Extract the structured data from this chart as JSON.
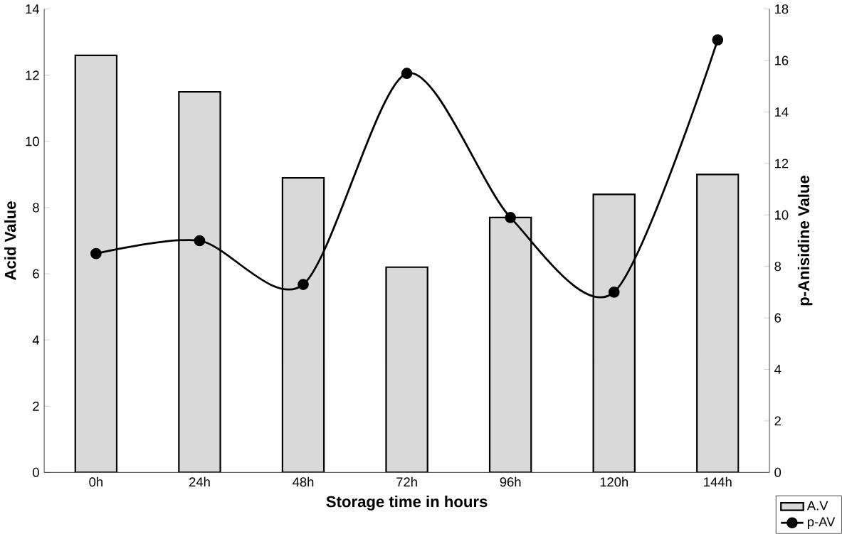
{
  "chart_data": {
    "type": "bar",
    "xlabel": "Storage time in hours",
    "ylabel": "Acid Value",
    "y2label": "p-Anisidine Value",
    "categories": [
      "0h",
      "24h",
      "48h",
      "72h",
      "96h",
      "120h",
      "144h"
    ],
    "series": [
      {
        "name": "A.V",
        "color": "#d9d9d9",
        "values": [
          12.6,
          11.5,
          8.9,
          6.2,
          7.7,
          8.4,
          9.0
        ]
      },
      {
        "name": "p-AV",
        "type": "line",
        "axis": "y2",
        "color": "#000000",
        "marker": "circle",
        "values": [
          8.5,
          9.0,
          7.3,
          15.5,
          9.9,
          7.0,
          16.8
        ]
      }
    ],
    "ylim": [
      0,
      14
    ],
    "yticks": [
      0,
      2,
      4,
      6,
      8,
      10,
      12,
      14
    ],
    "y2lim": [
      0,
      18
    ],
    "y2ticks": [
      0,
      2,
      4,
      6,
      8,
      10,
      12,
      14,
      16,
      18
    ],
    "legend": "bottom right",
    "grid": false
  }
}
